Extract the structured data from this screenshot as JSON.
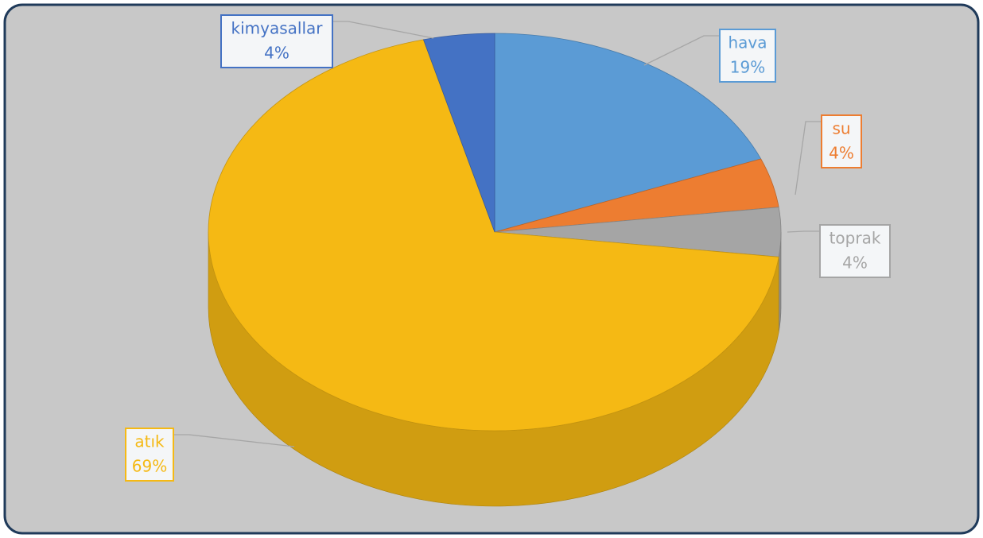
{
  "chart_data": {
    "type": "pie",
    "categories": [
      "hava",
      "su",
      "toprak",
      "atık",
      "kimyasallar"
    ],
    "values": [
      19,
      4,
      4,
      69,
      4
    ],
    "value_labels": [
      "19%",
      "4%",
      "4%",
      "69%",
      "4%"
    ],
    "colors": [
      "#5b9bd5",
      "#ed7d31",
      "#a5a5a5",
      "#f5b914",
      "#4472c4"
    ]
  }
}
